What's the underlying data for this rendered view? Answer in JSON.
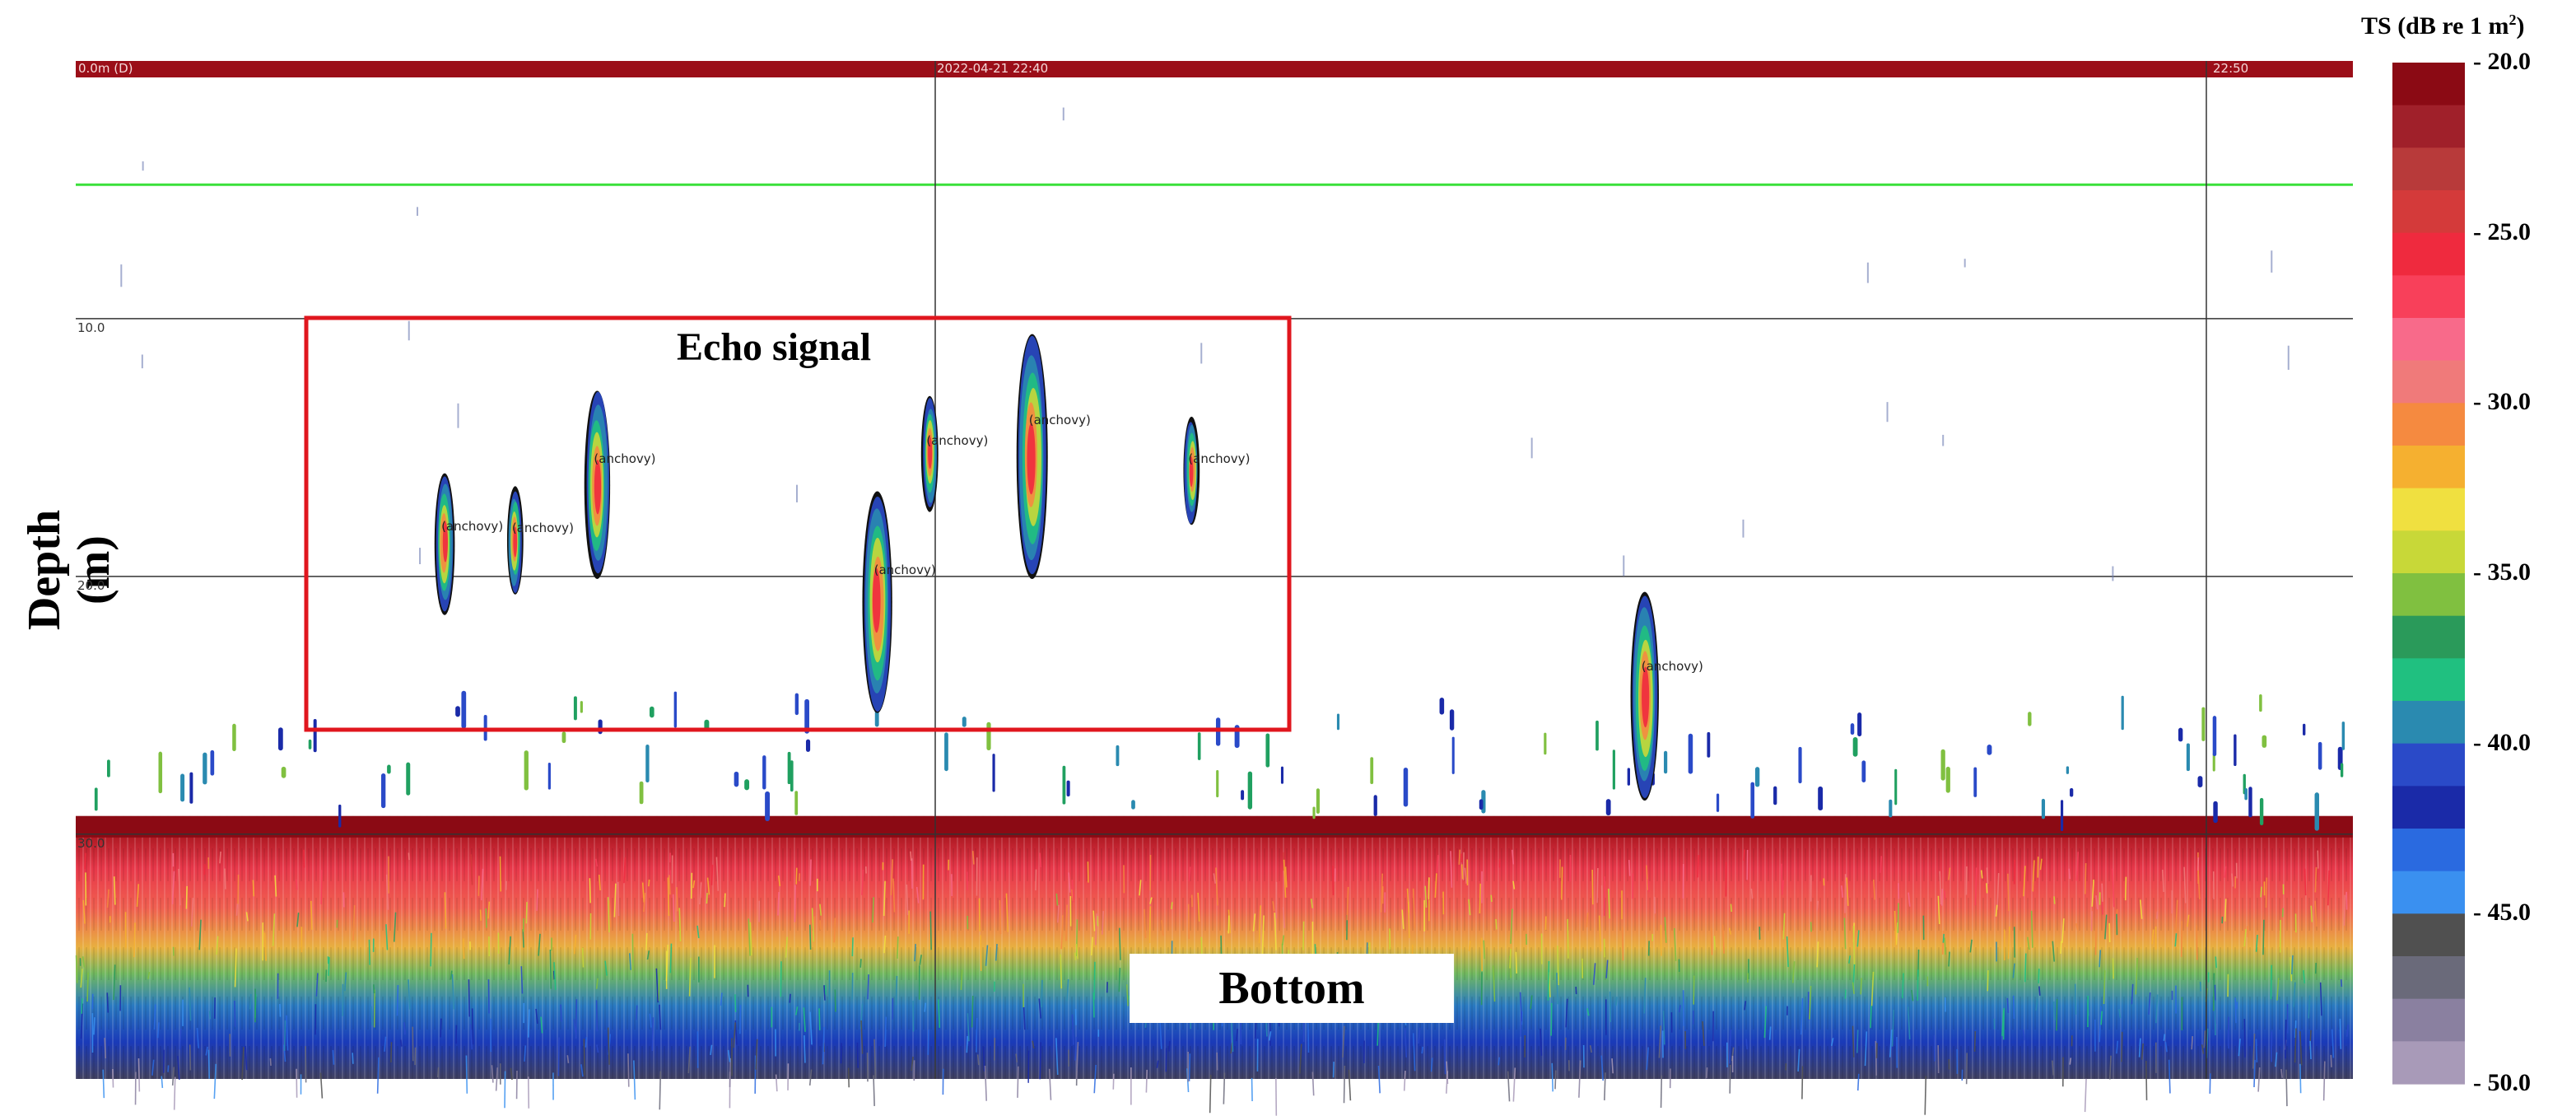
{
  "chart_data": {
    "type": "heatmap",
    "title": "",
    "ylabel": "Depth (m)",
    "xlabel": "",
    "depth_axis": {
      "ticks": [
        "10.0",
        "20.0",
        "30.0"
      ],
      "tick_values": [
        10,
        20,
        30
      ],
      "ylim": [
        0,
        39.5
      ],
      "surface_label": "0.0m (D)"
    },
    "time_axis": {
      "ticks": [
        "2022-04-21 22:40",
        "22:50"
      ]
    },
    "colorbar": {
      "title": "TS (dB re 1 m",
      "title_sup": "2",
      "title_end": ")",
      "ticks": [
        "- 20.0",
        "- 25.0",
        "- 30.0",
        "- 35.0",
        "- 40.0",
        "- 45.0",
        "- 50.0"
      ],
      "tick_values": [
        -20,
        -25,
        -30,
        -35,
        -40,
        -45,
        -50
      ],
      "range": [
        -50,
        -20
      ],
      "palette": [
        "#8b0a14",
        "#a0202a",
        "#b83a3a",
        "#d43a3a",
        "#ef2a3e",
        "#f8405a",
        "#f86a8a",
        "#f07a7a",
        "#f58a40",
        "#f5b030",
        "#f0e040",
        "#c8d838",
        "#80c040",
        "#2a9a5a",
        "#20c080",
        "#2a8ab0",
        "#2a4ac8",
        "#1a2aa8",
        "#2a6ae0",
        "#3a90f0",
        "#505050",
        "#6a6a7a",
        "#8a80a0",
        "#a89ab8"
      ]
    },
    "annotations": {
      "region_label": "Echo signal",
      "bottom_label": "Bottom",
      "green_line_depth": 4.8,
      "bottom_depth": 29.3
    },
    "targets": [
      {
        "species": "(anchovy)",
        "depth_top": 16.0,
        "depth_bottom": 21.5,
        "x_frac": 0.162,
        "label": true
      },
      {
        "species": "(anchovy)",
        "depth_top": 16.5,
        "depth_bottom": 20.7,
        "x_frac": 0.193,
        "label": true
      },
      {
        "species": "(anchovy)",
        "depth_top": 12.8,
        "depth_bottom": 20.1,
        "x_frac": 0.229,
        "label": true
      },
      {
        "species": "(anchovy)",
        "depth_top": 16.7,
        "depth_bottom": 25.3,
        "x_frac": 0.352,
        "label": true
      },
      {
        "species": "(anchovy)",
        "depth_top": 13.0,
        "depth_bottom": 17.5,
        "x_frac": 0.375,
        "label": true
      },
      {
        "species": "(anchovy)",
        "depth_top": 10.6,
        "depth_bottom": 20.1,
        "x_frac": 0.42,
        "label": true
      },
      {
        "species": "(anchovy)",
        "depth_top": 13.8,
        "depth_bottom": 18.0,
        "x_frac": 0.49,
        "label": true
      },
      {
        "species": "(anchovy)",
        "depth_top": 20.6,
        "depth_bottom": 28.7,
        "x_frac": 0.689,
        "label": true
      }
    ]
  }
}
